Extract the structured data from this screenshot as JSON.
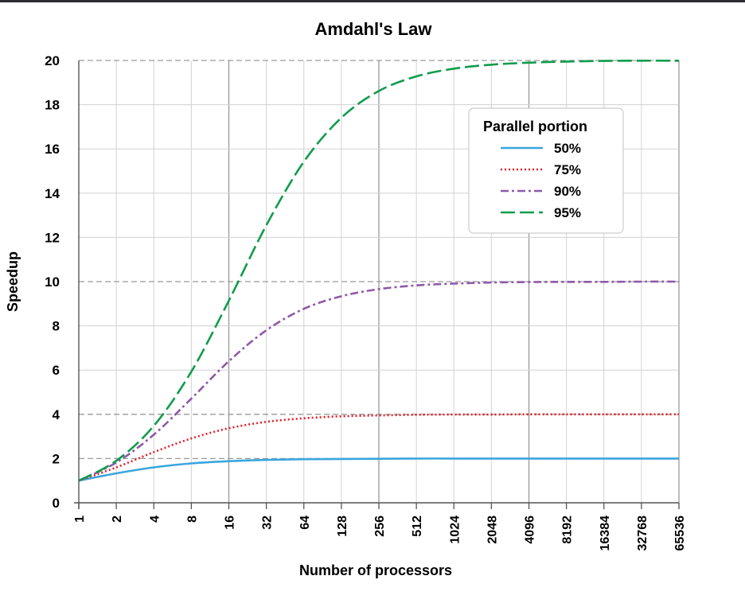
{
  "chart_data": {
    "type": "line",
    "title": "Amdahl's Law",
    "xlabel": "Number of processors",
    "ylabel": "Speedup",
    "x_scale": "log2",
    "categories": [
      "1",
      "2",
      "4",
      "8",
      "16",
      "32",
      "64",
      "128",
      "256",
      "512",
      "1024",
      "2048",
      "4096",
      "8192",
      "16384",
      "32768",
      "65536"
    ],
    "x": [
      1,
      2,
      4,
      8,
      16,
      32,
      64,
      128,
      256,
      512,
      1024,
      2048,
      4096,
      8192,
      16384,
      32768,
      65536
    ],
    "ylim": [
      0,
      20
    ],
    "yticks": [
      "0",
      "2",
      "4",
      "6",
      "8",
      "10",
      "12",
      "14",
      "16",
      "18",
      "20"
    ],
    "grid": true,
    "legend": {
      "title": "Parallel portion",
      "placement": "top-right"
    },
    "series": [
      {
        "name": "50%",
        "color": "#3aa6dd",
        "dash": "solid",
        "values": [
          1.0,
          1.33,
          1.6,
          1.78,
          1.88,
          1.94,
          1.97,
          1.98,
          1.99,
          2.0,
          2.0,
          2.0,
          2.0,
          2.0,
          2.0,
          2.0,
          2.0
        ]
      },
      {
        "name": "75%",
        "color": "#e0202a",
        "dash": "dotted",
        "values": [
          1.0,
          1.6,
          2.29,
          2.91,
          3.37,
          3.66,
          3.82,
          3.91,
          3.95,
          3.98,
          3.99,
          3.99,
          4.0,
          4.0,
          4.0,
          4.0,
          4.0
        ]
      },
      {
        "name": "90%",
        "color": "#8e5aa8",
        "dash": "dashdot",
        "values": [
          1.0,
          1.82,
          3.08,
          4.71,
          6.4,
          7.8,
          8.77,
          9.34,
          9.66,
          9.83,
          9.91,
          9.96,
          9.98,
          9.99,
          9.99,
          10.0,
          10.0
        ]
      },
      {
        "name": "95%",
        "color": "#109c4c",
        "dash": "dashed",
        "values": [
          1.0,
          1.9,
          3.48,
          5.93,
          9.14,
          12.55,
          15.42,
          17.41,
          18.62,
          19.28,
          19.63,
          19.81,
          19.9,
          19.95,
          19.98,
          19.99,
          19.99
        ]
      }
    ]
  }
}
